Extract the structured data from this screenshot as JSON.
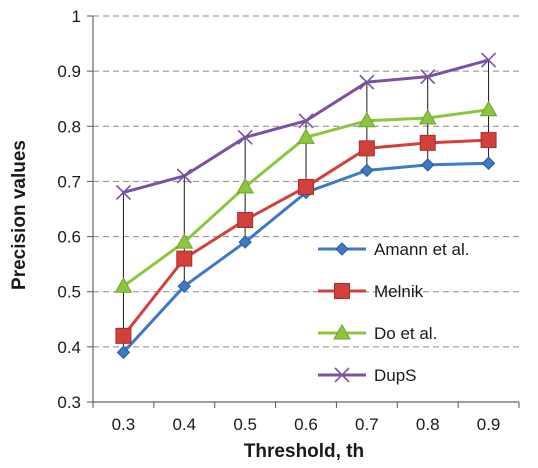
{
  "chart_data": {
    "type": "line",
    "xlabel": "Threshold, th",
    "ylabel": "Precision values",
    "x": [
      0.3,
      0.4,
      0.5,
      0.6,
      0.7,
      0.8,
      0.9
    ],
    "x_tick_labels": [
      "0.3",
      "0.4",
      "0.5",
      "0.6",
      "0.7",
      "0.8",
      "0.9"
    ],
    "ylim": [
      0.3,
      1
    ],
    "y_ticks": [
      0.3,
      0.4,
      0.5,
      0.6,
      0.7,
      0.8,
      0.9,
      1
    ],
    "y_tick_labels": [
      "0.3",
      "0.4",
      "0.5",
      "0.6",
      "0.7",
      "0.8",
      "0.9",
      "1"
    ],
    "grid": "horizontal dashed",
    "drop_lines": true,
    "legend_position": "lower-right",
    "series": [
      {
        "name": "Amann et al.",
        "color": "#3E78C8",
        "marker": "diamond",
        "values": [
          0.39,
          0.51,
          0.59,
          0.68,
          0.72,
          0.73,
          0.733
        ]
      },
      {
        "name": "Melnik",
        "color": "#D2403C",
        "marker": "square",
        "values": [
          0.42,
          0.56,
          0.63,
          0.69,
          0.76,
          0.77,
          0.775
        ]
      },
      {
        "name": "Do et al.",
        "color": "#8CC63F",
        "marker": "triangle",
        "values": [
          0.51,
          0.59,
          0.69,
          0.78,
          0.81,
          0.815,
          0.83
        ]
      },
      {
        "name": "DupS",
        "color": "#7B52A0",
        "marker": "x",
        "values": [
          0.68,
          0.71,
          0.78,
          0.81,
          0.88,
          0.89,
          0.92
        ]
      }
    ]
  }
}
